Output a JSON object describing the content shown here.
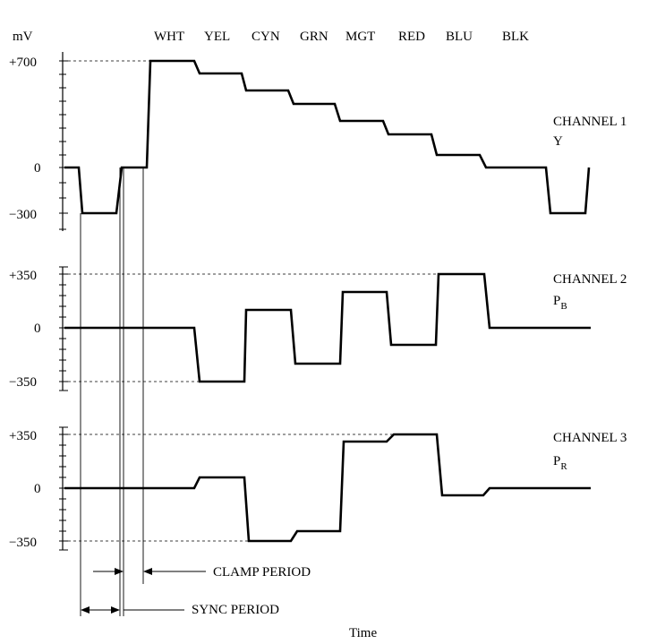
{
  "axis_unit": "mV",
  "time_label": "Time",
  "bars": [
    "WHT",
    "YEL",
    "CYN",
    "GRN",
    "MGT",
    "RED",
    "BLU",
    "BLK"
  ],
  "channels": [
    {
      "label": "CHANNEL 1",
      "signal": "Y",
      "signal_sub": "",
      "ticks": [
        "+700",
        "0",
        "−300"
      ]
    },
    {
      "label": "CHANNEL 2",
      "signal": "P",
      "signal_sub": "B",
      "ticks": [
        "+350",
        "0",
        "−350"
      ]
    },
    {
      "label": "CHANNEL 3",
      "signal": "P",
      "signal_sub": "R",
      "ticks": [
        "+350",
        "0",
        "−350"
      ]
    }
  ],
  "periods": {
    "clamp": "CLAMP PERIOD",
    "sync": "SYNC PERIOD"
  }
}
